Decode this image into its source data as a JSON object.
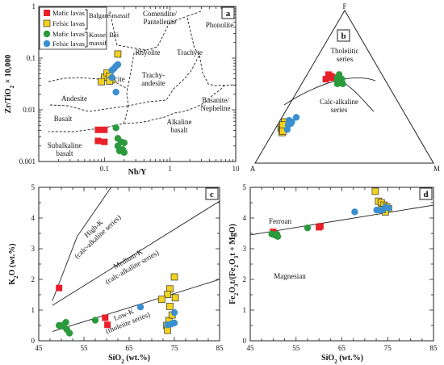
{
  "colors": {
    "mafic_bk": "#e8202a",
    "felsic_bk": "#f2d21e",
    "mafic_kb": "#2a9a3c",
    "felsic_kb": "#3a8fd0"
  },
  "chart_data": [
    {
      "panel": "a",
      "type": "scatter",
      "x_scale": "log",
      "y_scale": "log",
      "xlabel": "Nb/Y",
      "ylabel": "Zr/TiO2 × 10,000",
      "xlim": [
        0.01,
        10
      ],
      "ylim": [
        0.001,
        1
      ],
      "x_ticks": [
        "0.1",
        "1",
        "10"
      ],
      "y_ticks": [
        "1",
        "0.1",
        "0.01",
        "0.001"
      ],
      "legend": {
        "placement": "top-left",
        "entries": [
          "Mafic lavas",
          "Felsic lavas",
          "Mafic lavas",
          "Felsic lavas"
        ],
        "groups": [
          "Balgaré massif",
          "Kossel Béi massif"
        ]
      },
      "field_labels": [
        "Comendite/ Pantellerite",
        "Phonolite",
        "Rhyolite",
        "Trachyte",
        "Dacite",
        "Trachy- andesite",
        "Andesite",
        "Basanite/ Nepheline",
        "Basalt",
        "Alkaline basalt",
        "Subalkaline basalt"
      ],
      "series": [
        {
          "legend": "Mafic lavas",
          "points": [
            [
              0.08,
              0.0025
            ],
            [
              0.1,
              0.0024
            ],
            [
              0.08,
              0.0041
            ],
            [
              0.1,
              0.0041
            ]
          ]
        },
        {
          "legend": "Felsic lavas",
          "points": [
            [
              0.16,
              0.12
            ],
            [
              0.1,
              0.043
            ],
            [
              0.11,
              0.052
            ],
            [
              0.12,
              0.045
            ],
            [
              0.13,
              0.038
            ],
            [
              0.09,
              0.035
            ],
            [
              0.12,
              0.036
            ]
          ]
        },
        {
          "legend": "Mafic lavas",
          "points": [
            [
              0.15,
              0.0045
            ],
            [
              0.16,
              0.0028
            ],
            [
              0.16,
              0.002
            ],
            [
              0.18,
              0.0024
            ],
            [
              0.17,
              0.0016
            ],
            [
              0.19,
              0.0017
            ],
            [
              0.2,
              0.0015
            ],
            [
              0.2,
              0.0023
            ]
          ]
        },
        {
          "legend": "Felsic lavas",
          "points": [
            [
              0.16,
              0.075
            ],
            [
              0.13,
              0.058
            ],
            [
              0.14,
              0.063
            ],
            [
              0.15,
              0.07
            ],
            [
              0.15,
              0.022
            ],
            [
              0.13,
              0.042
            ]
          ]
        }
      ]
    },
    {
      "panel": "b",
      "type": "scatter",
      "diagram": "ternary AFM",
      "vertices": [
        "F",
        "A",
        "M"
      ],
      "field_labels": [
        "Tholeiitic series",
        "Calc-alkaline series"
      ],
      "series": [
        {
          "legend": "Mafic lavas",
          "points_FAM": [
            [
              0.55,
              0.33,
              0.12
            ],
            [
              0.56,
              0.31,
              0.13
            ],
            [
              0.58,
              0.3,
              0.12
            ],
            [
              0.56,
              0.28,
              0.16
            ],
            [
              0.57,
              0.29,
              0.14
            ]
          ]
        },
        {
          "legend": "Felsic lavas",
          "points_FAM": [
            [
              0.23,
              0.74,
              0.03
            ],
            [
              0.24,
              0.72,
              0.04
            ],
            [
              0.22,
              0.74,
              0.04
            ],
            [
              0.27,
              0.7,
              0.03
            ],
            [
              0.25,
              0.72,
              0.03
            ],
            [
              0.2,
              0.75,
              0.05
            ],
            [
              0.21,
              0.74,
              0.05
            ]
          ]
        },
        {
          "legend": "Mafic lavas",
          "points_FAM": [
            [
              0.52,
              0.28,
              0.2
            ],
            [
              0.53,
              0.26,
              0.21
            ],
            [
              0.55,
              0.24,
              0.21
            ],
            [
              0.56,
              0.25,
              0.19
            ],
            [
              0.52,
              0.25,
              0.23
            ],
            [
              0.56,
              0.26,
              0.18
            ],
            [
              0.54,
              0.27,
              0.19
            ],
            [
              0.58,
              0.24,
              0.18
            ]
          ]
        },
        {
          "legend": "Felsic lavas",
          "points_FAM": [
            [
              0.3,
              0.62,
              0.08
            ],
            [
              0.22,
              0.71,
              0.07
            ],
            [
              0.26,
              0.67,
              0.07
            ],
            [
              0.25,
              0.69,
              0.06
            ],
            [
              0.27,
              0.66,
              0.07
            ],
            [
              0.28,
              0.67,
              0.05
            ]
          ]
        }
      ]
    },
    {
      "panel": "c",
      "type": "scatter",
      "xlabel": "SiO2 (wt.%)",
      "ylabel": "K2O (wt.%)",
      "xlim": [
        45,
        85
      ],
      "ylim": [
        0,
        5
      ],
      "x_ticks": [
        "45",
        "55",
        "65",
        "75",
        "85"
      ],
      "y_ticks": [
        "0",
        "1",
        "2",
        "3",
        "4",
        "5"
      ],
      "field_labels": [
        "High-K (calc-alkaline series)",
        "Medium-K (calc-alkaline series)",
        "Low-K (tholeiite series)"
      ],
      "series": [
        {
          "legend": "Mafic lavas",
          "points": [
            [
              49.5,
              1.72
            ],
            [
              59.7,
              0.75
            ],
            [
              60.2,
              0.52
            ]
          ]
        },
        {
          "legend": "Felsic lavas",
          "points": [
            [
              75,
              2.08
            ],
            [
              74,
              1.69
            ],
            [
              75.2,
              1.4
            ],
            [
              73.5,
              1.51
            ],
            [
              72.2,
              1.35
            ],
            [
              74,
              1.12
            ],
            [
              73.8,
              0.66
            ],
            [
              73.3,
              0.5
            ],
            [
              73.5,
              0.34
            ],
            [
              74.5,
              0.84
            ]
          ]
        },
        {
          "legend": "Mafic lavas",
          "points": [
            [
              49.5,
              0.5
            ],
            [
              50.5,
              0.52
            ],
            [
              51,
              0.6
            ],
            [
              51.2,
              0.37
            ],
            [
              51.8,
              0.25
            ],
            [
              57.5,
              0.67
            ],
            [
              50.4,
              0.47
            ]
          ]
        },
        {
          "legend": "Felsic lavas",
          "points": [
            [
              67.5,
              1.1
            ],
            [
              74.3,
              0.55
            ],
            [
              75,
              0.58
            ],
            [
              75,
              0.92
            ],
            [
              73.5,
              0.52
            ]
          ]
        }
      ]
    },
    {
      "panel": "d",
      "type": "scatter",
      "xlabel": "SiO2 (wt.%)",
      "ylabel": "Fe2O3t/(Fe2O3t + MgO)",
      "xlim": [
        45,
        85
      ],
      "ylim": [
        0,
        5
      ],
      "x_ticks": [
        "45",
        "55",
        "65",
        "75",
        "85"
      ],
      "y_ticks": [
        "0",
        "1",
        "2",
        "3",
        "4",
        "5"
      ],
      "field_labels": [
        "Ferroan",
        "Magnesian"
      ],
      "series": [
        {
          "legend": "Mafic lavas",
          "points": [
            [
              50,
              3.55
            ],
            [
              60,
              3.7
            ],
            [
              60.3,
              3.73
            ]
          ]
        },
        {
          "legend": "Felsic lavas",
          "points": [
            [
              72.3,
              4.87
            ],
            [
              73,
              4.55
            ],
            [
              73.6,
              4.5
            ],
            [
              74.2,
              4.42
            ],
            [
              74.8,
              4.37
            ],
            [
              75.2,
              4.3
            ],
            [
              74.5,
              4.2
            ],
            [
              73.8,
              4.28
            ]
          ]
        },
        {
          "legend": "Mafic lavas",
          "points": [
            [
              49.7,
              3.48
            ],
            [
              50.4,
              3.44
            ],
            [
              51,
              3.4
            ],
            [
              57.5,
              3.68
            ],
            [
              50.8,
              3.47
            ]
          ]
        },
        {
          "legend": "Felsic lavas",
          "points": [
            [
              67.8,
              4.2
            ],
            [
              72.6,
              4.26
            ],
            [
              73.8,
              4.26
            ],
            [
              74.5,
              4.35
            ],
            [
              75.2,
              4.32
            ]
          ]
        }
      ]
    }
  ]
}
